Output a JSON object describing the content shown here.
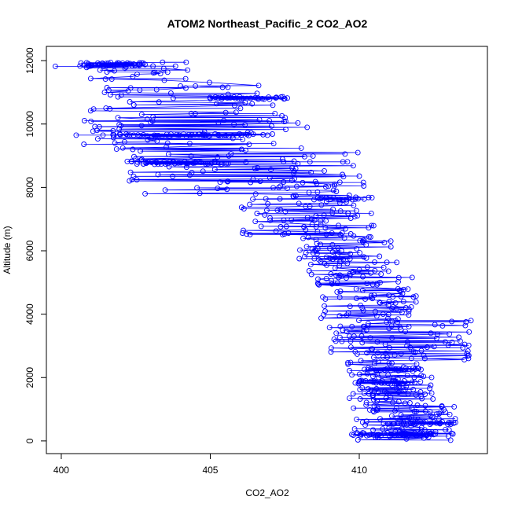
{
  "chart_data": {
    "type": "scatter",
    "title": "ATOM2 Northeast_Pacific_2 CO2_AO2",
    "xlabel": "CO2_AO2",
    "ylabel": "Altitude (m)",
    "xlim": [
      399.5,
      414.3
    ],
    "ylim": [
      -400,
      12450
    ],
    "xticks": [
      400,
      405,
      410
    ],
    "yticks": [
      0,
      2000,
      4000,
      6000,
      8000,
      10000,
      12000
    ],
    "grid": false,
    "legend": "none",
    "marker": "open-circle",
    "connected": true,
    "color": "#0000ff",
    "series": [
      {
        "profile": [
          [
            409.8,
            180
          ],
          [
            410.6,
            200
          ],
          [
            411.5,
            220
          ],
          [
            412.4,
            210
          ],
          [
            413.1,
            240
          ],
          [
            412.2,
            350
          ],
          [
            411.0,
            420
          ],
          [
            410.2,
            500
          ],
          [
            411.8,
            560
          ],
          [
            413.0,
            580
          ],
          [
            411.9,
            620
          ],
          [
            410.7,
            700
          ],
          [
            411.4,
            820
          ],
          [
            412.6,
            850
          ],
          [
            411.2,
            950
          ],
          [
            410.5,
            1100
          ],
          [
            411.7,
            1200
          ],
          [
            410.9,
            1350
          ],
          [
            411.9,
            1450
          ],
          [
            410.4,
            1600
          ],
          [
            411.1,
            1750
          ],
          [
            410.0,
            1850
          ],
          [
            411.3,
            1950
          ],
          [
            410.6,
            2100
          ],
          [
            411.8,
            2200
          ],
          [
            410.3,
            2300
          ],
          [
            411.0,
            2450
          ],
          [
            412.2,
            2600
          ],
          [
            411.4,
            2750
          ],
          [
            410.4,
            2900
          ],
          [
            411.6,
            3000
          ],
          [
            410.1,
            3100
          ],
          [
            411.1,
            3250
          ],
          [
            412.4,
            3400
          ],
          [
            411.0,
            3550
          ],
          [
            410.3,
            3700
          ],
          [
            411.3,
            3850
          ],
          [
            410.8,
            4000
          ],
          [
            410.1,
            4200
          ],
          [
            411.0,
            4400
          ],
          [
            410.5,
            4600
          ],
          [
            409.9,
            4800
          ],
          [
            410.7,
            5000
          ],
          [
            409.4,
            5200
          ],
          [
            410.0,
            5400
          ],
          [
            409.6,
            5600
          ],
          [
            408.9,
            5800
          ],
          [
            409.4,
            6000
          ],
          [
            408.7,
            6200
          ],
          [
            409.5,
            6400
          ],
          [
            408.6,
            6600
          ],
          [
            409.3,
            6800
          ],
          [
            408.4,
            7000
          ],
          [
            409.1,
            7200
          ],
          [
            408.2,
            7400
          ],
          [
            408.9,
            7550
          ],
          [
            407.8,
            7700
          ],
          [
            408.6,
            7850
          ],
          [
            407.3,
            8000
          ],
          [
            408.1,
            8150
          ],
          [
            407.0,
            8300
          ],
          [
            407.8,
            8450
          ],
          [
            406.5,
            8600
          ],
          [
            405.6,
            8750
          ],
          [
            404.5,
            8800
          ],
          [
            403.2,
            8780
          ],
          [
            402.5,
            8900
          ],
          [
            403.6,
            9050
          ],
          [
            402.4,
            9200
          ],
          [
            401.8,
            9400
          ],
          [
            402.9,
            9500
          ],
          [
            401.4,
            9650
          ],
          [
            400.5,
            9650
          ],
          [
            401.2,
            9800
          ],
          [
            402.0,
            9950
          ],
          [
            403.0,
            10050
          ],
          [
            401.9,
            10200
          ],
          [
            402.7,
            10300
          ],
          [
            401.5,
            10500
          ],
          [
            402.3,
            10700
          ],
          [
            405.0,
            10800
          ],
          [
            406.6,
            10820
          ],
          [
            407.5,
            10800
          ],
          [
            405.8,
            10850
          ],
          [
            404.0,
            11200
          ],
          [
            402.4,
            11500
          ],
          [
            401.3,
            11700
          ],
          [
            400.9,
            11820
          ],
          [
            402.2,
            11880
          ],
          [
            403.4,
            11950
          ],
          [
            402.6,
            11880
          ],
          [
            401.6,
            11850
          ],
          [
            399.8,
            11820
          ]
        ],
        "clusters": [
          {
            "x_min": 401.7,
            "x_max": 404.8,
            "y": 9650,
            "y_spread": 40,
            "n": 30
          },
          {
            "x_min": 404.6,
            "x_max": 406.4,
            "y": 9650,
            "y_spread": 40,
            "n": 18
          },
          {
            "x_min": 402.2,
            "x_max": 405.5,
            "y": 8780,
            "y_spread": 50,
            "n": 34
          },
          {
            "x_min": 400.6,
            "x_max": 402.8,
            "y": 11880,
            "y_spread": 60,
            "n": 30
          },
          {
            "x_min": 405.0,
            "x_max": 407.6,
            "y": 10820,
            "y_spread": 40,
            "n": 24
          },
          {
            "x_min": 408.5,
            "x_max": 409.9,
            "y": 7650,
            "y_spread": 40,
            "n": 14
          },
          {
            "x_min": 409.8,
            "x_max": 412.6,
            "y": 200,
            "y_spread": 60,
            "n": 36
          },
          {
            "x_min": 410.9,
            "x_max": 413.2,
            "y": 560,
            "y_spread": 50,
            "n": 26
          },
          {
            "x_min": 409.9,
            "x_max": 411.8,
            "y": 1850,
            "y_spread": 50,
            "n": 22
          },
          {
            "x_min": 410.2,
            "x_max": 411.9,
            "y": 2250,
            "y_spread": 50,
            "n": 18
          }
        ],
        "scatter_bands": [
          [
            0,
            1200,
            409.7,
            413.3,
            70
          ],
          [
            1200,
            2500,
            409.6,
            412.6,
            70
          ],
          [
            2500,
            3800,
            409.0,
            413.8,
            80
          ],
          [
            3800,
            5200,
            408.6,
            412.0,
            70
          ],
          [
            5200,
            6500,
            407.8,
            411.3,
            70
          ],
          [
            6500,
            7800,
            406.0,
            410.6,
            75
          ],
          [
            7800,
            9200,
            402.2,
            410.5,
            80
          ],
          [
            9200,
            10500,
            400.6,
            408.3,
            60
          ],
          [
            10500,
            11400,
            401.2,
            407.8,
            30
          ],
          [
            11400,
            12000,
            400.8,
            404.4,
            25
          ]
        ]
      }
    ]
  }
}
